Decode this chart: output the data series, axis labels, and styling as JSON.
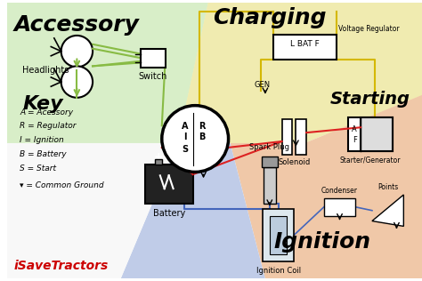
{
  "bg_color": "#ffffff",
  "acc_color": "#daefd0",
  "chg_color": "#f5f2c0",
  "sta_color": "#f5d0bc",
  "ign_color": "#c8d8f0",
  "key_color": "#ffffff",
  "watermark": "iSaveTractors",
  "wire_green": "#88bb44",
  "wire_yellow": "#d4b800",
  "wire_red": "#dd2222",
  "wire_blue": "#4466bb",
  "label_acc": "Accessory",
  "label_chg": "Charging",
  "label_sta": "Starting",
  "label_ign": "Ignition",
  "label_key": "Key",
  "key_lines": [
    "A = Acessory",
    "R = Regulator",
    "I = Ignition",
    "B = Battery",
    "S = Start"
  ],
  "key_ground": "= Common Ground"
}
